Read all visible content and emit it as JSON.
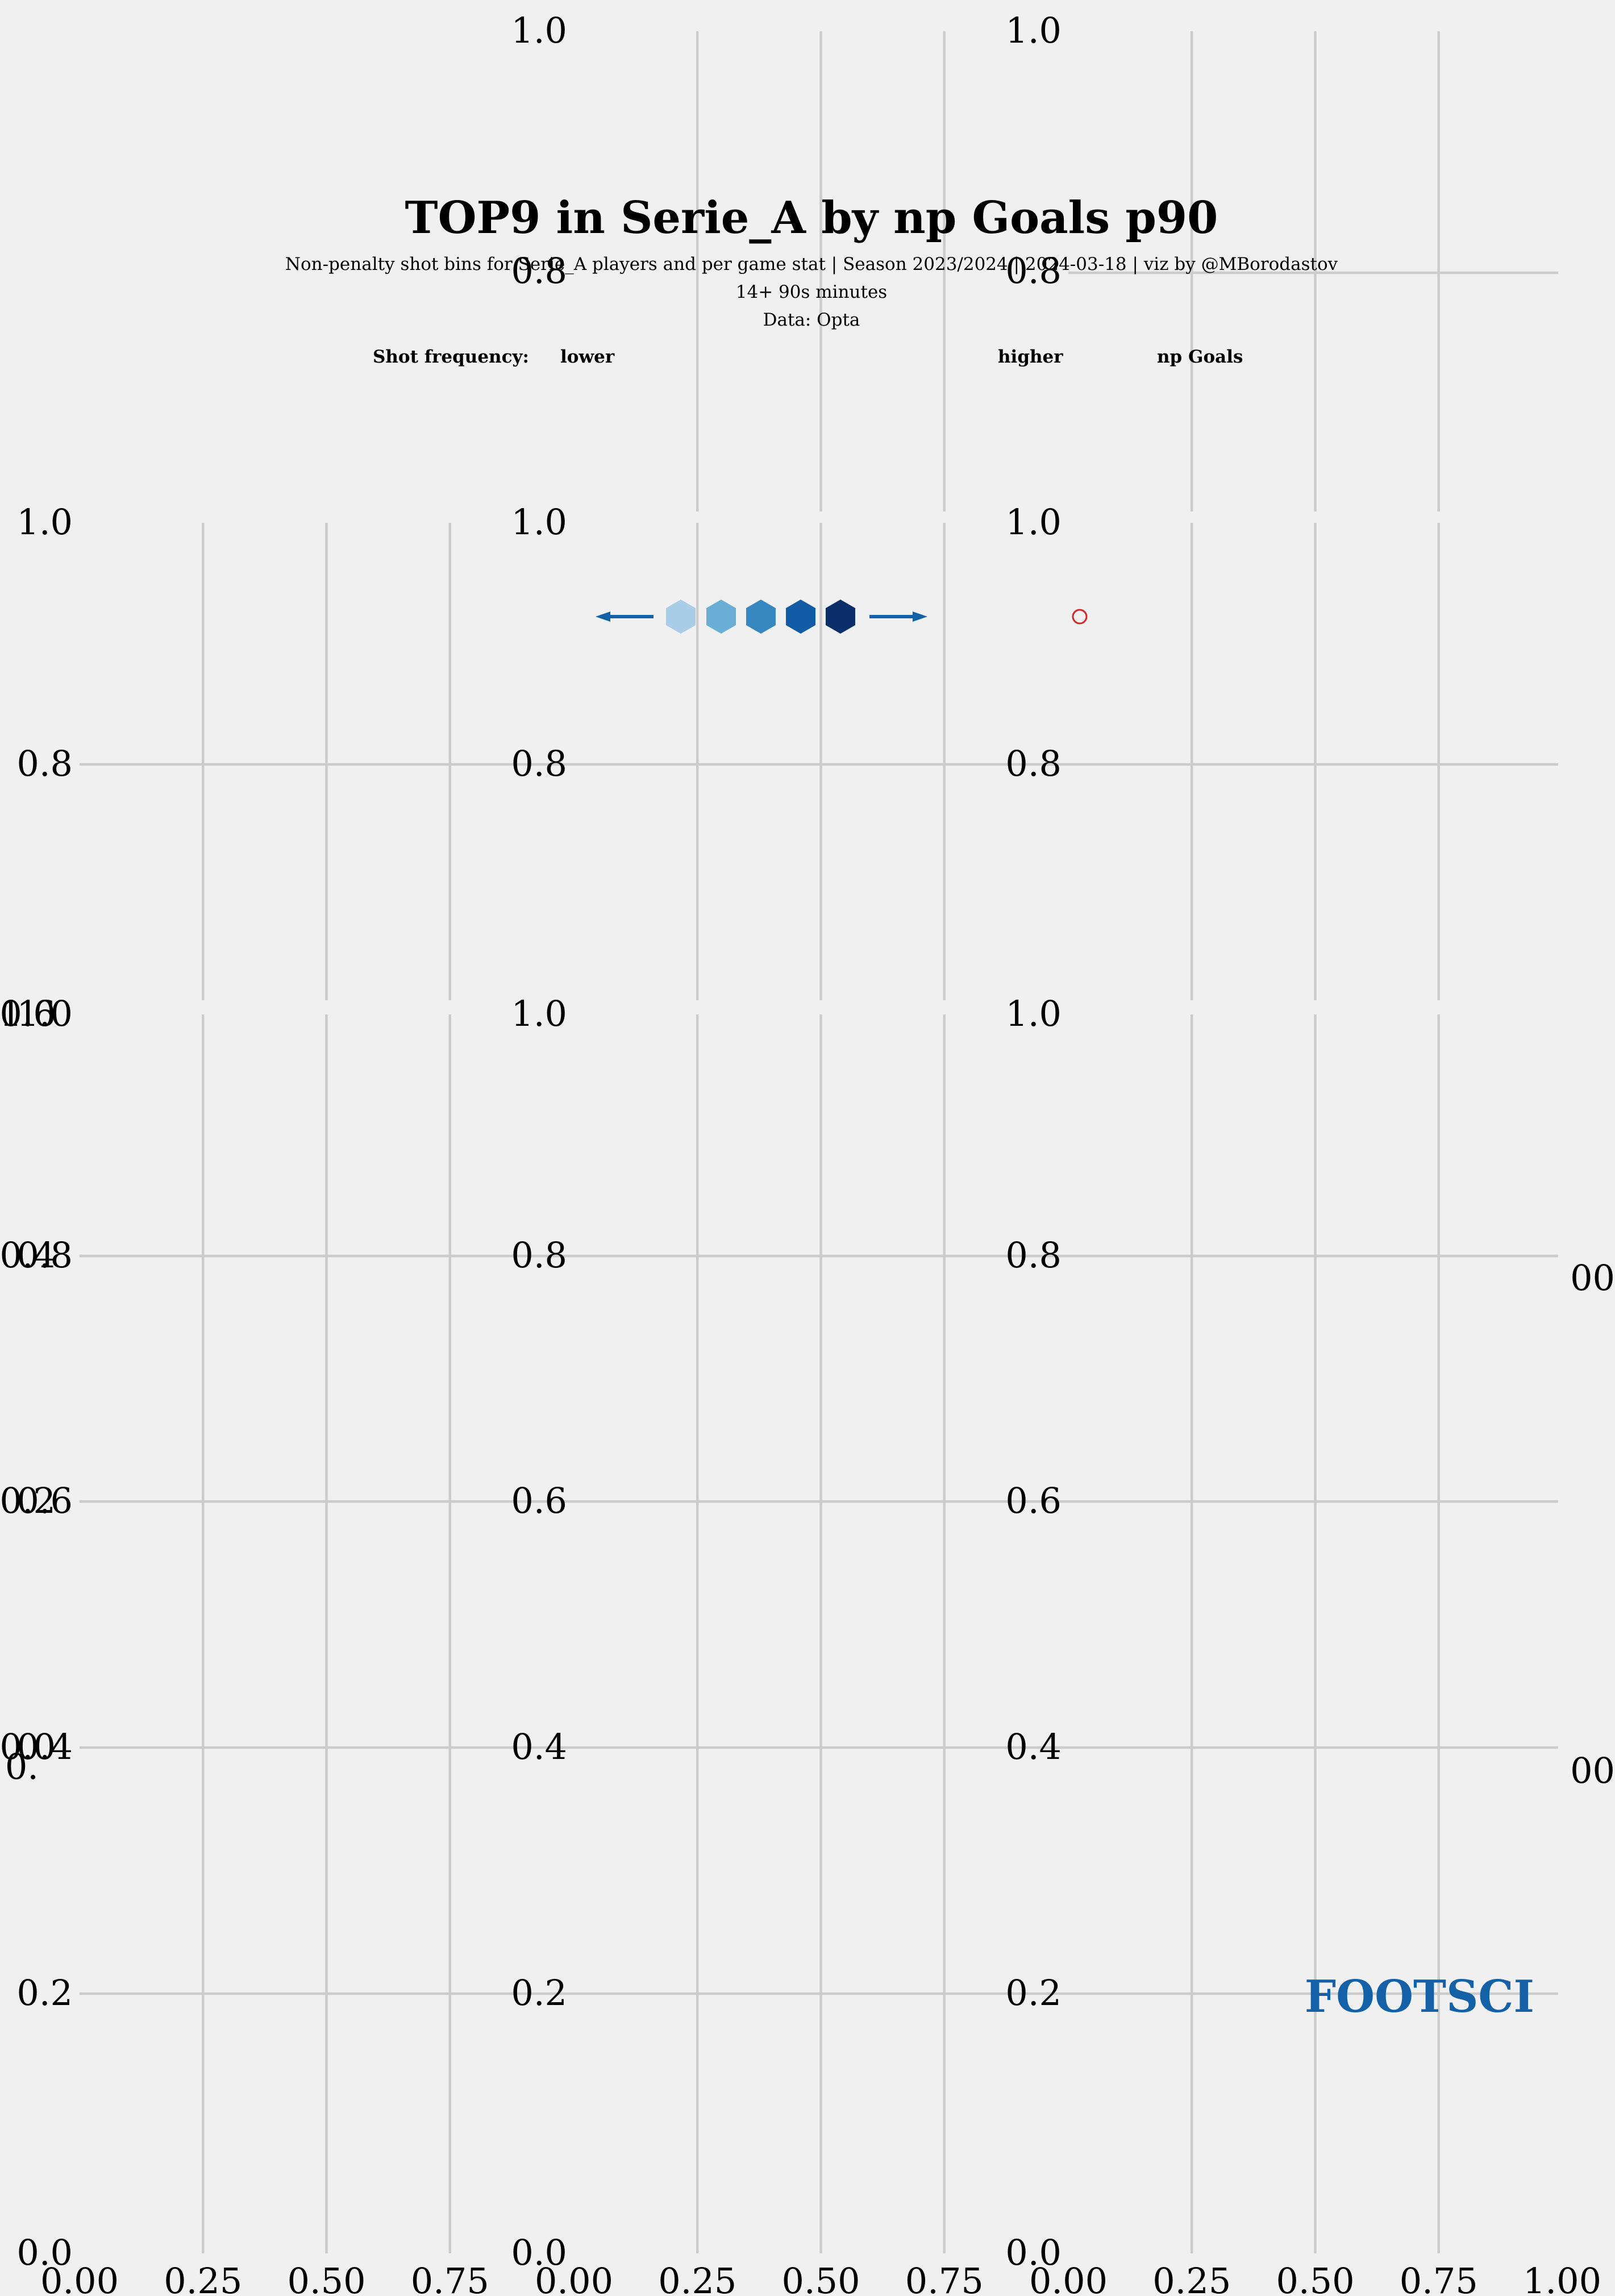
{
  "chart_data": {
    "type": "scatter",
    "title": "TOP9 in Serie_A by np Goals p90",
    "subtitle": "Non-penalty shot bins for Serie_A players and per game stat | Season 2023/2024 | 2024-03-18 | viz by @MBorodastov",
    "minutes_note": "14+ 90s minutes",
    "source": "Data: Opta",
    "legend": {
      "frequency_label": "Shot frequency:",
      "lower_label": "lower",
      "higher_label": "higher",
      "stat_label": "np Goals",
      "hex_colors": [
        "#a9cde6",
        "#6aaed6",
        "#3787c0",
        "#115ca4",
        "#0a2f6b"
      ],
      "arrow_color": "#1561a8",
      "marker_color": "#d62728"
    },
    "panels": [
      {
        "row": 0,
        "col": 1,
        "yticks": [
          "0.8",
          "1.0"
        ],
        "xticks": []
      },
      {
        "row": 0,
        "col": 2,
        "yticks": [
          "0.8",
          "1.0"
        ],
        "xticks": []
      },
      {
        "row": 1,
        "col": 0,
        "yticks": [
          "0.8",
          "1.0"
        ],
        "xticks": []
      },
      {
        "row": 1,
        "col": 1,
        "yticks": [
          "0.8",
          "1.0"
        ],
        "xticks": []
      },
      {
        "row": 1,
        "col": 2,
        "yticks": [
          "0.8",
          "1.0"
        ],
        "xticks": []
      },
      {
        "row": 2,
        "col": 0,
        "yticks": [
          "0.0",
          "0.2",
          "0.4",
          "0.6",
          "0.8",
          "1.0"
        ],
        "xticks": [
          "0.00",
          "0.25",
          "0.50",
          "0.75"
        ]
      },
      {
        "row": 2,
        "col": 1,
        "yticks": [
          "0.0",
          "0.2",
          "0.4",
          "0.6",
          "0.8",
          "1.0"
        ],
        "xticks": [
          "0.00",
          "0.25",
          "0.50",
          "0.75"
        ]
      },
      {
        "row": 2,
        "col": 2,
        "yticks": [
          "0.0",
          "0.2",
          "0.4",
          "0.6",
          "0.8",
          "1.0"
        ],
        "xticks": [
          "0.00",
          "0.25",
          "0.50",
          "0.75",
          "1.00"
        ]
      }
    ],
    "overlap_tick_labels": [
      "1.0",
      "0.6",
      "0.4",
      "0.2",
      "0.0",
      "0.",
      "00"
    ],
    "brand": "FOOTSCI",
    "grid": true
  }
}
